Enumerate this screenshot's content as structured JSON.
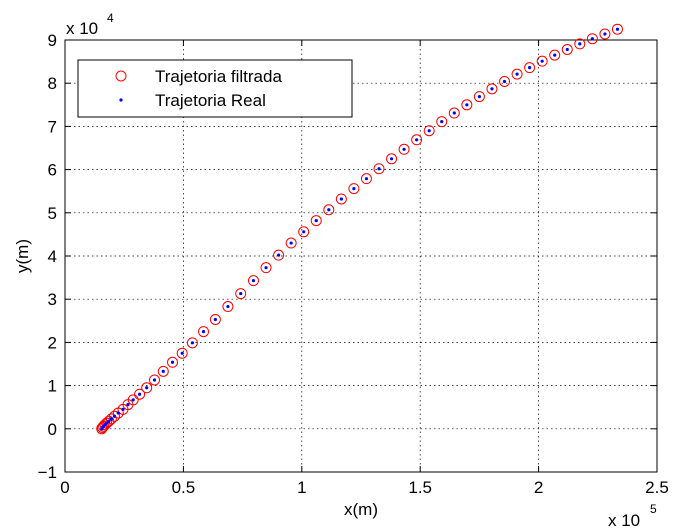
{
  "chart_data": {
    "type": "scatter",
    "title": "",
    "xlabel": "x(m)",
    "ylabel": "y(m)",
    "x_multiplier_label": {
      "base": "x 10",
      "exp": "5"
    },
    "y_multiplier_label": {
      "base": "x 10",
      "exp": "4"
    },
    "xlim": [
      0,
      2.5
    ],
    "ylim": [
      -1,
      9
    ],
    "xticks": [
      "0",
      "0.5",
      "1",
      "1.5",
      "2",
      "2.5"
    ],
    "yticks": [
      "−1",
      "0",
      "1",
      "2",
      "3",
      "4",
      "5",
      "6",
      "7",
      "8",
      "9"
    ],
    "grid": true,
    "legend_position": "top-left",
    "x_scale": 100000,
    "y_scale": 10000,
    "series": [
      {
        "name": "Trajetoria filtrada",
        "marker": "circle",
        "color": "#ff0000",
        "points": [
          [
            15500,
            0
          ],
          [
            15800,
            300
          ],
          [
            16300,
            600
          ],
          [
            16900,
            950
          ],
          [
            17600,
            1300
          ],
          [
            18500,
            1750
          ],
          [
            19600,
            2300
          ],
          [
            20900,
            2900
          ],
          [
            22500,
            3650
          ],
          [
            24500,
            4500
          ],
          [
            26600,
            5600
          ],
          [
            28800,
            6700
          ],
          [
            31500,
            8000
          ],
          [
            34500,
            9500
          ],
          [
            37800,
            11300
          ],
          [
            41500,
            13300
          ],
          [
            45400,
            15400
          ],
          [
            49500,
            17500
          ],
          [
            53800,
            19900
          ],
          [
            58500,
            22500
          ],
          [
            63500,
            25300
          ],
          [
            68800,
            28300
          ],
          [
            74200,
            31300
          ],
          [
            79600,
            34300
          ],
          [
            84900,
            37300
          ],
          [
            90200,
            40200
          ],
          [
            95500,
            43000
          ],
          [
            100800,
            45600
          ],
          [
            106100,
            48200
          ],
          [
            111400,
            50700
          ],
          [
            116700,
            53200
          ],
          [
            122000,
            55600
          ],
          [
            127300,
            57900
          ],
          [
            132600,
            60200
          ],
          [
            137900,
            62500
          ],
          [
            143200,
            64700
          ],
          [
            148500,
            66900
          ],
          [
            153800,
            69000
          ],
          [
            159100,
            71100
          ],
          [
            164400,
            73100
          ],
          [
            169700,
            75000
          ],
          [
            175000,
            76900
          ],
          [
            180300,
            78700
          ],
          [
            185600,
            80400
          ],
          [
            190900,
            82100
          ],
          [
            196200,
            83600
          ],
          [
            201500,
            85100
          ],
          [
            206800,
            86500
          ],
          [
            212100,
            87800
          ],
          [
            217400,
            89100
          ],
          [
            222700,
            90300
          ],
          [
            228000,
            91400
          ],
          [
            233300,
            92500
          ]
        ]
      },
      {
        "name": "Trajetoria Real",
        "marker": "dot",
        "color": "#0000ff",
        "points": [
          [
            15500,
            0
          ],
          [
            15800,
            300
          ],
          [
            16300,
            600
          ],
          [
            16900,
            950
          ],
          [
            17600,
            1300
          ],
          [
            18500,
            1750
          ],
          [
            19600,
            2300
          ],
          [
            20900,
            2900
          ],
          [
            22500,
            3650
          ],
          [
            24500,
            4500
          ],
          [
            26600,
            5600
          ],
          [
            28800,
            6700
          ],
          [
            31500,
            8000
          ],
          [
            34500,
            9500
          ],
          [
            37800,
            11300
          ],
          [
            41500,
            13300
          ],
          [
            45400,
            15400
          ],
          [
            49500,
            17500
          ],
          [
            53800,
            19900
          ],
          [
            58500,
            22500
          ],
          [
            63500,
            25300
          ],
          [
            68800,
            28300
          ],
          [
            74200,
            31300
          ],
          [
            79600,
            34300
          ],
          [
            84900,
            37300
          ],
          [
            90200,
            40200
          ],
          [
            95500,
            43000
          ],
          [
            100800,
            45600
          ],
          [
            106100,
            48200
          ],
          [
            111400,
            50700
          ],
          [
            116700,
            53200
          ],
          [
            122000,
            55600
          ],
          [
            127300,
            57900
          ],
          [
            132600,
            60200
          ],
          [
            137900,
            62500
          ],
          [
            143200,
            64700
          ],
          [
            148500,
            66900
          ],
          [
            153800,
            69000
          ],
          [
            159100,
            71100
          ],
          [
            164400,
            73100
          ],
          [
            169700,
            75000
          ],
          [
            175000,
            76900
          ],
          [
            180300,
            78700
          ],
          [
            185600,
            80400
          ],
          [
            190900,
            82100
          ],
          [
            196200,
            83600
          ],
          [
            201500,
            85100
          ],
          [
            206800,
            86500
          ],
          [
            212100,
            87800
          ],
          [
            217400,
            89100
          ],
          [
            222700,
            90300
          ],
          [
            228000,
            91400
          ],
          [
            233300,
            92500
          ]
        ]
      }
    ]
  }
}
